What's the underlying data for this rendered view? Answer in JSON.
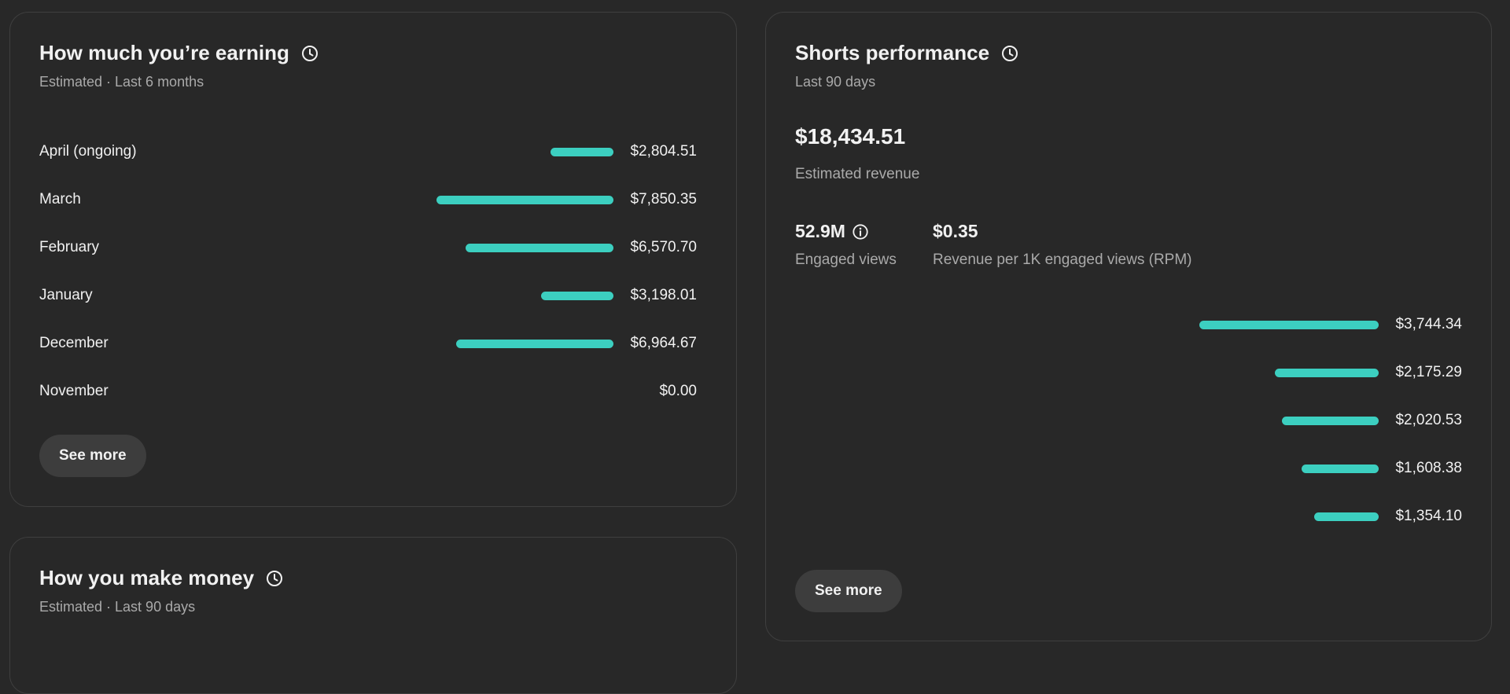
{
  "earning": {
    "title": "How much you’re earning",
    "subtitle": "Estimated · Last 6 months",
    "rows": [
      {
        "label": "April (ongoing)",
        "value": "$2,804.51",
        "amount": 2804.51
      },
      {
        "label": "March",
        "value": "$7,850.35",
        "amount": 7850.35
      },
      {
        "label": "February",
        "value": "$6,570.70",
        "amount": 6570.7
      },
      {
        "label": "January",
        "value": "$3,198.01",
        "amount": 3198.01
      },
      {
        "label": "December",
        "value": "$6,964.67",
        "amount": 6964.67
      },
      {
        "label": "November",
        "value": "$0.00",
        "amount": 0
      }
    ],
    "see_more": "See more"
  },
  "money": {
    "title": "How you make money",
    "subtitle": "Estimated · Last 90 days"
  },
  "shorts": {
    "title": "Shorts performance",
    "subtitle": "Last 90 days",
    "revenue": "$18,434.51",
    "revenue_label": "Estimated revenue",
    "engaged_views": "52.9M",
    "engaged_views_label": "Engaged views",
    "rpm": "$0.35",
    "rpm_label": "Revenue per 1K engaged views (RPM)",
    "rows": [
      {
        "value": "$3,744.34",
        "amount": 3744.34
      },
      {
        "value": "$2,175.29",
        "amount": 2175.29
      },
      {
        "value": "$2,020.53",
        "amount": 2020.53
      },
      {
        "value": "$1,608.38",
        "amount": 1608.38
      },
      {
        "value": "$1,354.10",
        "amount": 1354.1
      }
    ],
    "see_more": "See more"
  },
  "colors": {
    "bar": "#3ccfc0",
    "background": "#282828",
    "border": "#3f3f3f",
    "button": "#3d3d3d",
    "text_primary": "#f1f1f1",
    "text_secondary": "#aaaaaa"
  },
  "icons": {
    "clock": "clock-icon",
    "info": "info-icon"
  }
}
